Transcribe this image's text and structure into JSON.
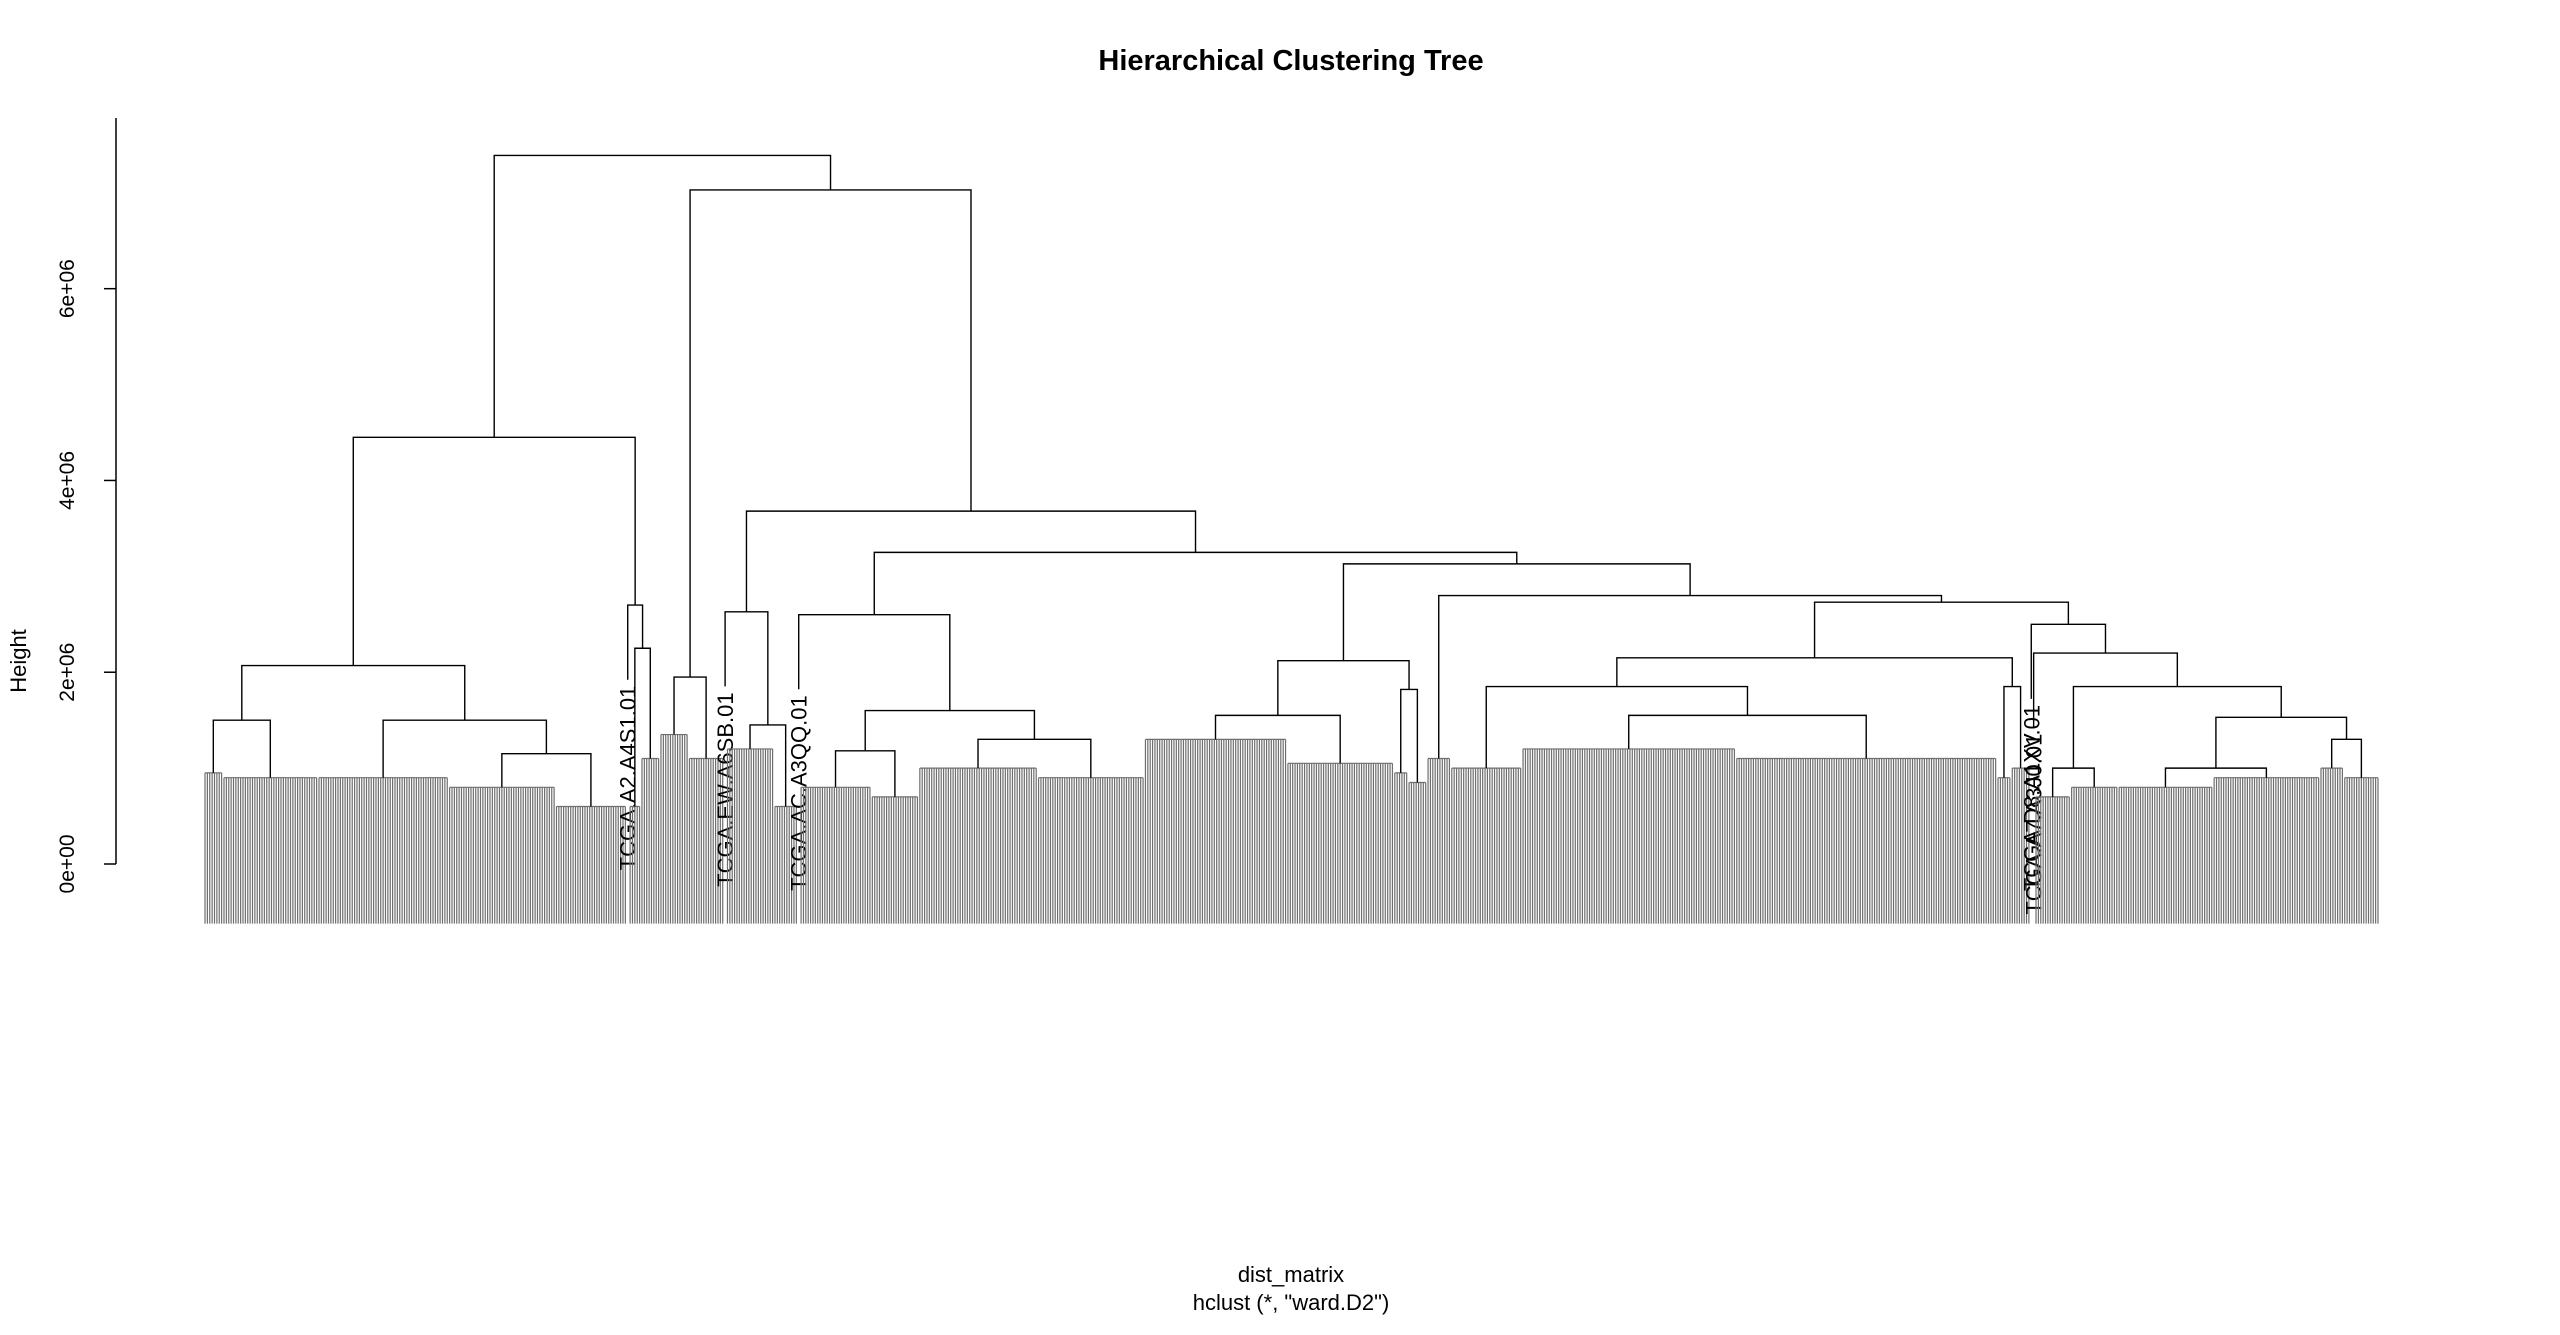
{
  "chart_data": {
    "type": "dendrogram",
    "title": "Hierarchical Clustering Tree",
    "y_label": "Height",
    "x_label": "dist_matrix",
    "subtitle": "hclust (*, \"ward.D2\")",
    "ylim": [
      0,
      7780000
    ],
    "yticks": [
      {
        "value": 0,
        "label": "0e+00"
      },
      {
        "value": 2000000,
        "label": "2e+06"
      },
      {
        "value": 4000000,
        "label": "4e+06"
      },
      {
        "value": 6000000,
        "label": "6e+06"
      }
    ],
    "tree": {
      "height": 7390000,
      "children": [
        {
          "height": 4450000,
          "children": [
            {
              "height": 2070000,
              "children": [
                {
                  "height": 1500000,
                  "children": [
                    {
                      "height": 950000,
                      "n": 8
                    },
                    {
                      "height": 900000,
                      "n": 40
                    }
                  ]
                },
                {
                  "height": 1500000,
                  "children": [
                    {
                      "height": 900000,
                      "n": 55
                    },
                    {
                      "height": 1150000,
                      "children": [
                        {
                          "height": 800000,
                          "n": 45
                        },
                        {
                          "height": 600000,
                          "n": 30
                        }
                      ]
                    }
                  ]
                }
              ]
            },
            {
              "height": 2700000,
              "children": [
                {
                  "label": "TCGA.A2.A4S1.01"
                },
                {
                  "height": 2250000,
                  "children": [
                    {
                      "height": 600000,
                      "n": 5
                    },
                    {
                      "height": 1100000,
                      "n": 8
                    }
                  ]
                }
              ]
            }
          ]
        },
        {
          "height": 7030000,
          "children": [
            {
              "height": 1950000,
              "children": [
                {
                  "height": 1350000,
                  "n": 12
                },
                {
                  "height": 1100000,
                  "n": 15
                }
              ]
            },
            {
              "height": 3680000,
              "children": [
                {
                  "height": 2630000,
                  "children": [
                    {
                      "label": "TCGA.EW.A6SB.01"
                    },
                    {
                      "height": 1450000,
                      "children": [
                        {
                          "height": 1200000,
                          "n": 20
                        },
                        {
                          "height": 600000,
                          "n": 10
                        }
                      ]
                    }
                  ]
                },
                {
                  "height": 3250000,
                  "children": [
                    {
                      "height": 2600000,
                      "children": [
                        {
                          "label": "TCGA.AC.A3QQ.01"
                        },
                        {
                          "height": 1600000,
                          "children": [
                            {
                              "height": 1180000,
                              "children": [
                                {
                                  "height": 800000,
                                  "n": 30
                                },
                                {
                                  "height": 700000,
                                  "n": 20
                                }
                              ]
                            },
                            {
                              "height": 1300000,
                              "children": [
                                {
                                  "height": 1000000,
                                  "n": 50
                                },
                                {
                                  "height": 900000,
                                  "n": 45
                                }
                              ]
                            }
                          ]
                        }
                      ]
                    },
                    {
                      "height": 3130000,
                      "children": [
                        {
                          "height": 2120000,
                          "children": [
                            {
                              "height": 1550000,
                              "children": [
                                {
                                  "height": 1300000,
                                  "n": 60
                                },
                                {
                                  "height": 1050000,
                                  "n": 45
                                }
                              ]
                            },
                            {
                              "height": 1820000,
                              "children": [
                                {
                                  "height": 950000,
                                  "n": 6
                                },
                                {
                                  "height": 850000,
                                  "n": 8
                                }
                              ]
                            }
                          ]
                        },
                        {
                          "height": 2800000,
                          "children": [
                            {
                              "height": 1100000,
                              "n": 10
                            },
                            {
                              "height": 2730000,
                              "children": [
                                {
                                  "height": 2150000,
                                  "children": [
                                    {
                                      "height": 1850000,
                                      "children": [
                                        {
                                          "height": 1000000,
                                          "n": 30
                                        },
                                        {
                                          "height": 1550000,
                                          "children": [
                                            {
                                              "height": 1200000,
                                              "n": 90
                                            },
                                            {
                                              "height": 1100000,
                                              "n": 110
                                            }
                                          ]
                                        }
                                      ]
                                    },
                                    {
                                      "height": 1850000,
                                      "children": [
                                        {
                                          "height": 900000,
                                          "n": 6
                                        },
                                        {
                                          "height": 1000000,
                                          "n": 8
                                        }
                                      ]
                                    }
                                  ]
                                },
                                {
                                  "height": 2500000,
                                  "children": [
                                    {
                                      "label": "TCGA.D8.A1XV.01"
                                    },
                                    {
                                      "height": 2200000,
                                      "children": [
                                        {
                                          "label": "TCGA.A7.A3J0.01"
                                        },
                                        {
                                          "height": 1850000,
                                          "children": [
                                            {
                                              "height": 1000000,
                                              "children": [
                                                {
                                                  "height": 700000,
                                                  "n": 15
                                                },
                                                {
                                                  "height": 800000,
                                                  "n": 20
                                                }
                                              ]
                                            },
                                            {
                                              "height": 1530000,
                                              "children": [
                                                {
                                                  "height": 1000000,
                                                  "children": [
                                                    {
                                                      "height": 800000,
                                                      "n": 40
                                                    },
                                                    {
                                                      "height": 900000,
                                                      "n": 45
                                                    }
                                                  ]
                                                },
                                                {
                                                  "height": 1300000,
                                                  "children": [
                                                    {
                                                      "height": 1000000,
                                                      "n": 10
                                                    },
                                                    {
                                                      "height": 900000,
                                                      "n": 15
                                                    }
                                                  ]
                                                }
                                              ]
                                            }
                                          ]
                                        }
                                      ]
                                    }
                                  ]
                                }
                              ]
                            }
                          ]
                        }
                      ]
                    }
                  ]
                }
              ]
            }
          ]
        }
      ]
    }
  }
}
